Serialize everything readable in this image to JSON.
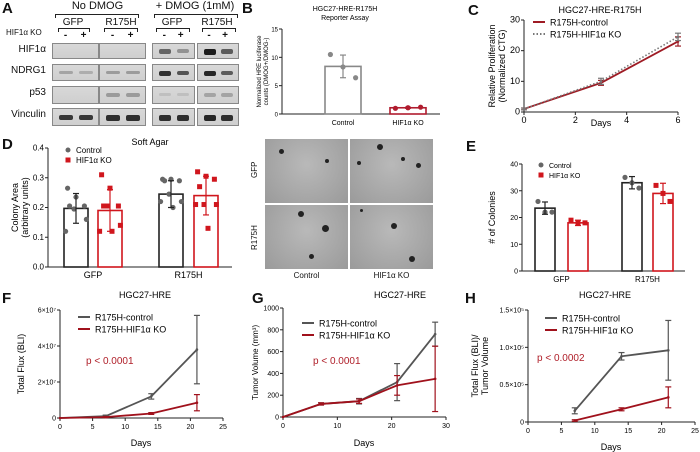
{
  "panel_labels": {
    "A": "A",
    "B": "B",
    "C": "C",
    "D": "D",
    "E": "E",
    "F": "F",
    "G": "G",
    "H": "H"
  },
  "western_blot": {
    "groups": [
      "No DMOG",
      "+ DMOG (1mM)"
    ],
    "cell_lines": [
      "GFP",
      "R175H",
      "GFP",
      "R175H"
    ],
    "ko_row_label": "HIF1α KO",
    "ko_signs": [
      "-",
      "+",
      "-",
      "+",
      "-",
      "+",
      "-",
      "+"
    ],
    "rows": [
      {
        "label": "HIF1α",
        "intensity": [
          0,
          0,
          0,
          0,
          0.55,
          0.3,
          0.95,
          0.6
        ]
      },
      {
        "label": "NDRG1",
        "intensity": [
          0.2,
          0.15,
          0.25,
          0.25,
          0.85,
          0.65,
          0.9,
          0.6
        ]
      },
      {
        "label": "p53",
        "intensity": [
          0,
          0,
          0.25,
          0.25,
          0.05,
          0.05,
          0.2,
          0.2
        ]
      },
      {
        "label": "Vinculin",
        "intensity": [
          0.8,
          0.8,
          0.85,
          0.85,
          0.85,
          0.85,
          0.9,
          0.85
        ]
      }
    ]
  },
  "soft_agar_images": {
    "row_labels": [
      "GFP",
      "R175H"
    ],
    "col_labels": [
      "Control",
      "HIF1α KO"
    ]
  },
  "chart_data": [
    {
      "id": "B",
      "type": "bar",
      "title": "HGC27-HRE-R175H\nReporter  Assay",
      "ylabel": "Normalized HRE luciferase\ncounts (DMOG+/DMOG-)",
      "categories": [
        "Control",
        "HIF1α KO"
      ],
      "ylim": [
        0,
        15
      ],
      "yticks": [
        0,
        5,
        10,
        15
      ],
      "series": [
        {
          "values": [
            8.4,
            1.1
          ],
          "sd": [
            2.0,
            0.1
          ],
          "points": [
            [
              10.5,
              8.3,
              6.4
            ],
            [
              1.0,
              1.1,
              1.2
            ]
          ],
          "colors": [
            "#888888",
            "#b01c2e"
          ]
        }
      ]
    },
    {
      "id": "C",
      "type": "line",
      "title": "HGC27-HRE-R175H",
      "ylabel": "Relative Proliferation\n(Normalized CTG)",
      "xlabel": "Days",
      "xlim": [
        0,
        6
      ],
      "xticks": [
        0,
        2,
        4,
        6
      ],
      "ylim": [
        0,
        30
      ],
      "yticks": [
        0,
        10,
        20,
        30
      ],
      "legend": "top-left",
      "series": [
        {
          "name": "R175H-control",
          "color": "#9e1b24",
          "style": "solid",
          "x": [
            0,
            3,
            6
          ],
          "y": [
            1,
            9.5,
            23
          ],
          "err": [
            0.3,
            0.8,
            1.5
          ]
        },
        {
          "name": "R175H-HIF1α KO",
          "color": "#777777",
          "style": "dotted",
          "x": [
            0,
            3,
            6
          ],
          "y": [
            1,
            10,
            24.5
          ],
          "err": [
            0.3,
            1.0,
            1.2
          ]
        }
      ]
    },
    {
      "id": "D",
      "type": "bar",
      "title": "Soft Agar",
      "ylabel": "Colony Area\n(arbitrary units)",
      "categories": [
        "GFP",
        "R175H"
      ],
      "ylim": [
        0,
        0.4
      ],
      "yticks": [
        0.0,
        0.1,
        0.2,
        0.3,
        0.4
      ],
      "ytick_labels": [
        "0.0",
        "0.1",
        "0.2",
        "0.3",
        "0.4"
      ],
      "legend": "top-left",
      "series": [
        {
          "name": "Control",
          "color": "#222222",
          "marker_color": "#666666",
          "marker": "circle",
          "values": [
            0.197,
            0.245
          ],
          "sd": [
            0.05,
            0.045
          ],
          "points": [
            [
              0.265,
              0.235,
              0.205,
              0.205,
              0.195,
              0.16,
              0.12
            ],
            [
              0.295,
              0.295,
              0.29,
              0.29,
              0.245,
              0.22,
              0.22,
              0.2
            ]
          ]
        },
        {
          "name": "HIF1α KO",
          "color": "#d0161d",
          "marker_color": "#d0161d",
          "marker": "square",
          "values": [
            0.19,
            0.24
          ],
          "sd": [
            0.07,
            0.065
          ],
          "points": [
            [
              0.31,
              0.265,
              0.205,
              0.205,
              0.205,
              0.14,
              0.12,
              0.12
            ],
            [
              0.32,
              0.305,
              0.295,
              0.27,
              0.21,
              0.21,
              0.21,
              0.13
            ]
          ]
        }
      ]
    },
    {
      "id": "E",
      "type": "bar",
      "ylabel": "# of Colonies",
      "categories": [
        "GFP",
        "R175H"
      ],
      "ylim": [
        0,
        40
      ],
      "yticks": [
        0,
        10,
        20,
        30,
        40
      ],
      "legend": "top-left",
      "series": [
        {
          "name": "Control",
          "color": "#222222",
          "marker_color": "#666666",
          "marker": "circle",
          "values": [
            23.5,
            33
          ],
          "sd": [
            2.3,
            2.3
          ],
          "points": [
            [
              26,
              22,
              22
            ],
            [
              35,
              33,
              31
            ]
          ]
        },
        {
          "name": "HIF1α KO",
          "color": "#d0161d",
          "marker_color": "#d0161d",
          "marker": "square",
          "values": [
            18,
            29
          ],
          "sd": [
            1,
            3.8
          ],
          "points": [
            [
              19,
              18,
              18
            ],
            [
              32,
              29,
              26
            ]
          ]
        }
      ]
    },
    {
      "id": "F",
      "type": "line",
      "title": "HGC27-HRE",
      "ylabel": "Total Flux (BLI)",
      "xlabel": "Days",
      "xlim": [
        0,
        25
      ],
      "xticks": [
        0,
        5,
        10,
        15,
        20,
        25
      ],
      "ylim": [
        0,
        60000000
      ],
      "yticks": [
        0,
        20000000,
        40000000,
        60000000
      ],
      "ytick_labels": [
        "0",
        "2×10⁷",
        "4×10⁷",
        "6×10⁷"
      ],
      "annotation": "p < 0.0001",
      "legend": "top-left",
      "series": [
        {
          "name": "R175H-control",
          "color": "#555555",
          "style": "solid",
          "x": [
            0,
            7,
            14,
            21
          ],
          "y": [
            0,
            1000000,
            12000000,
            38000000
          ],
          "err": [
            0,
            600000,
            1500000,
            19000000
          ]
        },
        {
          "name": "R175H-HIF1α KO",
          "color": "#a0111c",
          "style": "solid",
          "x": [
            0,
            7,
            14,
            21
          ],
          "y": [
            0,
            500000,
            2500000,
            8500000
          ],
          "err": [
            0,
            300000,
            500000,
            4500000
          ]
        }
      ]
    },
    {
      "id": "G",
      "type": "line",
      "title": "HGC27-HRE",
      "ylabel": "Tumor Volume (mm³)",
      "xlabel": "Days",
      "xlim": [
        0,
        30
      ],
      "xticks": [
        0,
        10,
        20,
        30
      ],
      "ylim": [
        0,
        1000
      ],
      "yticks": [
        0,
        200,
        400,
        600,
        800,
        1000
      ],
      "annotation": "p < 0.0001",
      "legend": "top-left",
      "series": [
        {
          "name": "R175H-control",
          "color": "#555555",
          "style": "solid",
          "x": [
            0,
            7,
            14,
            21,
            28
          ],
          "y": [
            0,
            120,
            145,
            320,
            760
          ],
          "err": [
            0,
            10,
            25,
            170,
            110
          ]
        },
        {
          "name": "R175H-HIF1α KO",
          "color": "#a0111c",
          "style": "solid",
          "x": [
            0,
            7,
            14,
            21,
            28
          ],
          "y": [
            0,
            120,
            145,
            290,
            350
          ],
          "err": [
            0,
            10,
            20,
            90,
            300
          ]
        }
      ]
    },
    {
      "id": "H",
      "type": "line",
      "title": "HGC27-HRE",
      "ylabel": "Total Flux (BLI)/\nTumor Volume",
      "xlabel": "Days",
      "xlim": [
        0,
        25
      ],
      "xticks": [
        0,
        5,
        10,
        15,
        20,
        25
      ],
      "ylim": [
        0,
        150000
      ],
      "yticks": [
        0,
        50000,
        100000,
        150000
      ],
      "ytick_labels": [
        "0",
        "0.5×10⁵",
        "1.0×10⁵",
        "1.5×10⁵"
      ],
      "annotation": "p < 0.0002",
      "legend": "top-left",
      "series": [
        {
          "name": "R175H-control",
          "color": "#555555",
          "style": "solid",
          "x": [
            7,
            14,
            21
          ],
          "y": [
            15000,
            88000,
            96000
          ],
          "err": [
            4000,
            5000,
            40000
          ]
        },
        {
          "name": "R175H-HIF1α KO",
          "color": "#a0111c",
          "style": "solid",
          "x": [
            7,
            14,
            21
          ],
          "y": [
            2000,
            17000,
            33000
          ],
          "err": [
            1000,
            2000,
            14000
          ]
        }
      ]
    }
  ]
}
